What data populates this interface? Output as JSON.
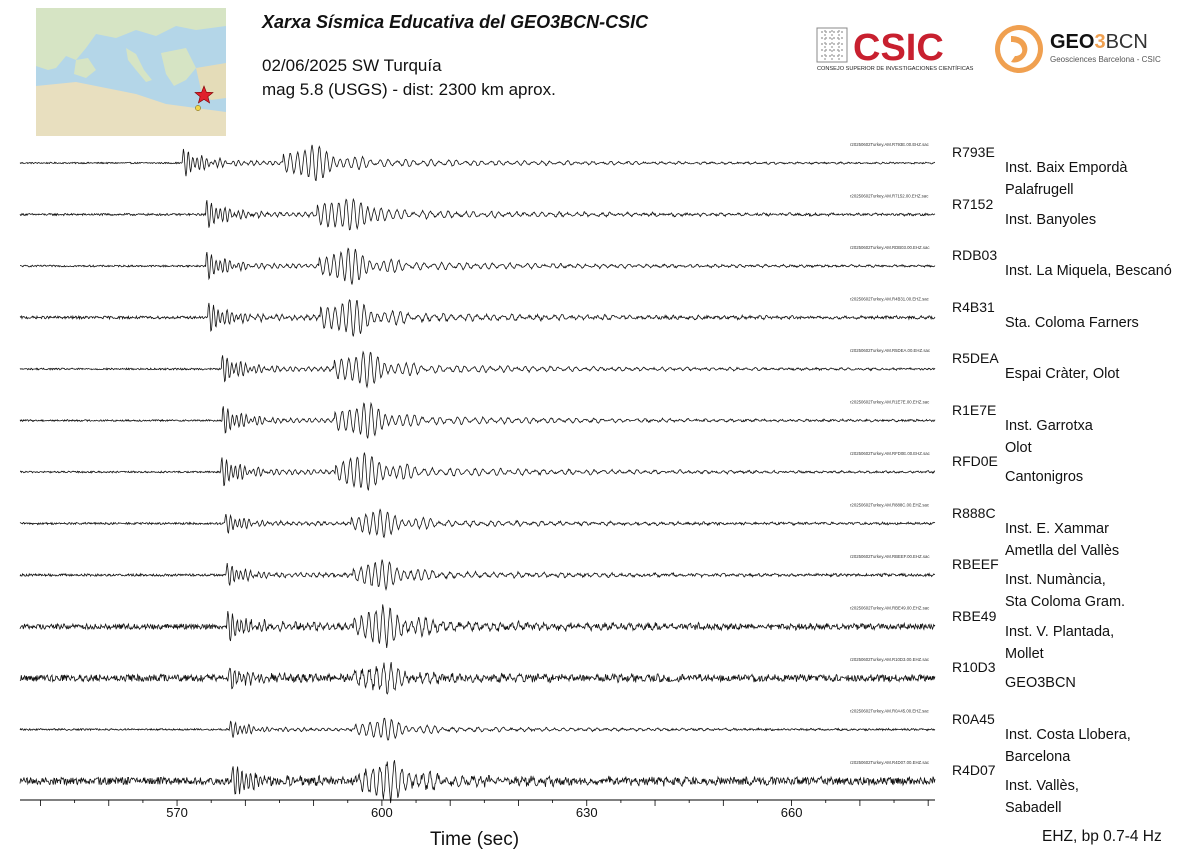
{
  "header": {
    "title": "Xarxa Sísmica Educativa del GEO3BCN-CSIC",
    "event": "02/06/2025 SW Turquía",
    "magnitude_distance": "mag 5.8 (USGS) - dist: 2300 km aprox."
  },
  "logos": {
    "csic_text": "CSIC",
    "csic_subtext": "CONSEJO SUPERIOR DE INVESTIGACIONES CIENTÍFICAS",
    "geo_text_a": "GEO",
    "geo_text_b": "3",
    "geo_text_c": "BCN",
    "geo_subtext": "Geosciences Barcelona - CSIC"
  },
  "colors": {
    "csic_red": "#c8202f",
    "geo_orange": "#f0a050",
    "marker_star": "#e0202c",
    "marker_station": "#f2d64a",
    "trace": "#111111"
  },
  "chart_data": {
    "type": "line",
    "xlabel": "Time (sec)",
    "filter_label": "EHZ, bp 0.7-4 Hz",
    "xlim": [
      547,
      681
    ],
    "xticks": [
      570,
      600,
      630,
      660
    ],
    "grid": false,
    "series": [
      {
        "code": "R793E",
        "site": [
          "Inst. Baix Empordà",
          "Palafrugell"
        ],
        "file_label": "r20250602Turkey.AM.R793E.00.EHZ.sac",
        "p_arrival": 570.8,
        "s_arrival": 589.5,
        "amp": 1.0,
        "noise": 0.04
      },
      {
        "code": "R7152",
        "site": [
          "Inst. Banyoles"
        ],
        "file_label": "r20250602Turkey.AM.R7152.00.EHZ.sac",
        "p_arrival": 574.2,
        "s_arrival": 594.5,
        "amp": 1.0,
        "noise": 0.06
      },
      {
        "code": "RDB03",
        "site": [
          "Inst. La Miquela, Bescanó"
        ],
        "file_label": "r20250602Turkey.AM.RDB03.00.EHZ.sac",
        "p_arrival": 574.2,
        "s_arrival": 594.8,
        "amp": 1.0,
        "noise": 0.05
      },
      {
        "code": "R4B31",
        "site": [
          "Sta. Coloma Farners"
        ],
        "file_label": "r20250602Turkey.AM.R4B31.00.EHZ.sac",
        "p_arrival": 574.5,
        "s_arrival": 595.0,
        "amp": 1.05,
        "noise": 0.08
      },
      {
        "code": "R5DEA",
        "site": [
          "Espai Cràter, Olot"
        ],
        "file_label": "r20250602Turkey.AM.R5DEA.00.EHZ.sac",
        "p_arrival": 576.5,
        "s_arrival": 597.0,
        "amp": 1.0,
        "noise": 0.05
      },
      {
        "code": "R1E7E",
        "site": [
          "Inst. Garrotxa",
          "Olot"
        ],
        "file_label": "r20250602Turkey.AM.R1E7E.00.EHZ.sac",
        "p_arrival": 576.6,
        "s_arrival": 597.1,
        "amp": 1.0,
        "noise": 0.05
      },
      {
        "code": "RFD0E",
        "site": [
          "Cantonigros"
        ],
        "file_label": "r20250602Turkey.AM.RFD0E.00.EHZ.sac",
        "p_arrival": 576.4,
        "s_arrival": 597.2,
        "amp": 1.05,
        "noise": 0.05
      },
      {
        "code": "R888C",
        "site": [
          "Inst. E. Xammar",
          "Ametlla del Vallès"
        ],
        "file_label": "r20250602Turkey.AM.R888C.00.EHZ.sac",
        "p_arrival": 577.0,
        "s_arrival": 599.5,
        "amp": 0.75,
        "noise": 0.06
      },
      {
        "code": "RBEEF",
        "site": [
          "Inst. Numància,",
          "Sta Coloma Gram."
        ],
        "file_label": "r20250602Turkey.AM.RBEEF.00.EHZ.sac",
        "p_arrival": 577.2,
        "s_arrival": 599.8,
        "amp": 0.8,
        "noise": 0.07
      },
      {
        "code": "RBE49",
        "site": [
          "Inst. V. Plantada,",
          "Mollet"
        ],
        "file_label": "r20250602Turkey.AM.RBE49.00.EHZ.sac",
        "p_arrival": 577.3,
        "s_arrival": 599.9,
        "amp": 1.1,
        "noise": 0.16
      },
      {
        "code": "R10D3",
        "site": [
          "GEO3BCN"
        ],
        "file_label": "r20250602Turkey.AM.R10D3.00.EHZ.sac",
        "p_arrival": 577.6,
        "s_arrival": 600.0,
        "amp": 0.8,
        "noise": 0.2
      },
      {
        "code": "R0A45",
        "site": [
          "Inst. Costa Llobera,",
          "Barcelona"
        ],
        "file_label": "r20250602Turkey.AM.R0A45.00.EHZ.sac",
        "p_arrival": 577.7,
        "s_arrival": 600.1,
        "amp": 0.6,
        "noise": 0.05
      },
      {
        "code": "R4D07",
        "site": [
          "Inst. Vallès,",
          "Sabadell"
        ],
        "file_label": "r20250602Turkey.AM.R4D07.00.EHZ.sac",
        "p_arrival": 578.0,
        "s_arrival": 600.5,
        "amp": 1.1,
        "noise": 0.22
      }
    ]
  }
}
